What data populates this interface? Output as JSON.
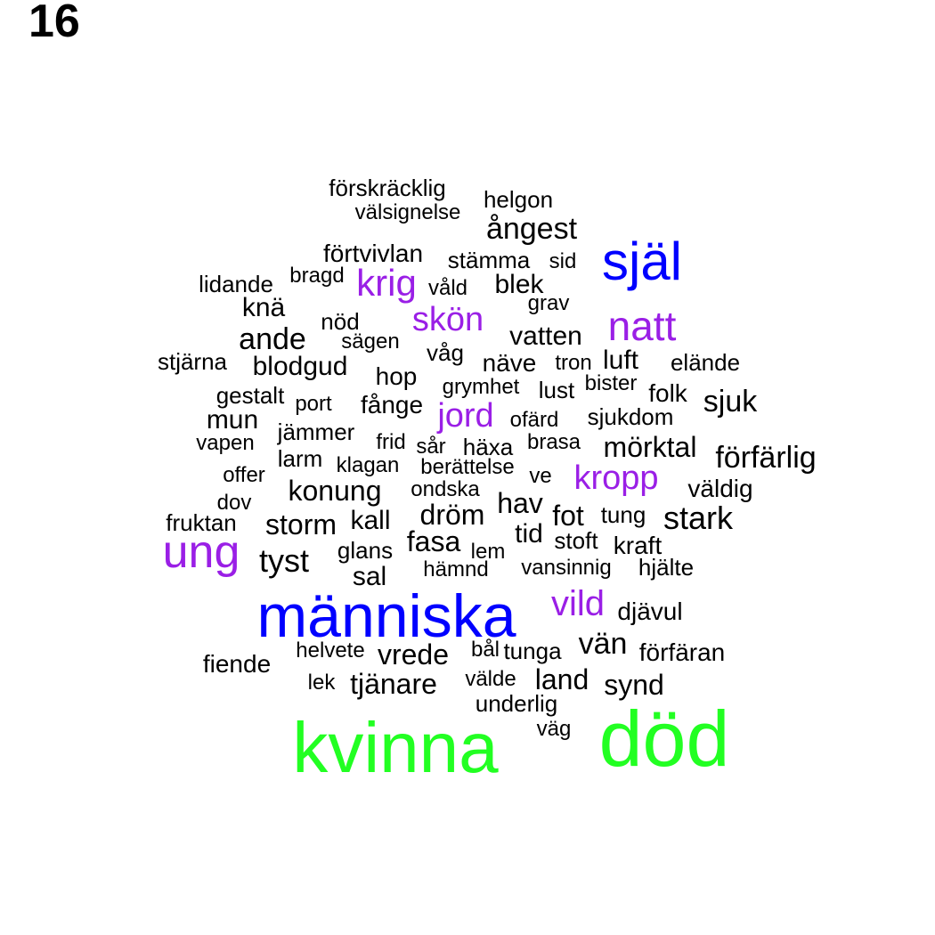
{
  "panel_label": "16",
  "colors": {
    "black": "#000000",
    "purple": "#9a1fe6",
    "blue": "#0000ff",
    "green": "#22ff22"
  },
  "words": [
    {
      "text": "kvinna",
      "color": "green"
    },
    {
      "text": "död",
      "color": "green"
    },
    {
      "text": "människa",
      "color": "blue"
    },
    {
      "text": "själ",
      "color": "blue"
    },
    {
      "text": "ung",
      "color": "purple"
    },
    {
      "text": "natt",
      "color": "purple"
    },
    {
      "text": "kropp",
      "color": "purple"
    },
    {
      "text": "vild",
      "color": "purple"
    },
    {
      "text": "jord",
      "color": "purple"
    },
    {
      "text": "krig",
      "color": "purple"
    },
    {
      "text": "skön",
      "color": "purple"
    },
    {
      "text": "förskräcklig",
      "color": "black"
    },
    {
      "text": "helgon",
      "color": "black"
    },
    {
      "text": "välsignelse",
      "color": "black"
    },
    {
      "text": "ångest",
      "color": "black"
    },
    {
      "text": "förtvivlan",
      "color": "black"
    },
    {
      "text": "stämma",
      "color": "black"
    },
    {
      "text": "sid",
      "color": "black"
    },
    {
      "text": "lidande",
      "color": "black"
    },
    {
      "text": "bragd",
      "color": "black"
    },
    {
      "text": "våld",
      "color": "black"
    },
    {
      "text": "blek",
      "color": "black"
    },
    {
      "text": "knä",
      "color": "black"
    },
    {
      "text": "grav",
      "color": "black"
    },
    {
      "text": "nöd",
      "color": "black"
    },
    {
      "text": "ande",
      "color": "black"
    },
    {
      "text": "sägen",
      "color": "black"
    },
    {
      "text": "vatten",
      "color": "black"
    },
    {
      "text": "stjärna",
      "color": "black"
    },
    {
      "text": "våg",
      "color": "black"
    },
    {
      "text": "blodgud",
      "color": "black"
    },
    {
      "text": "näve",
      "color": "black"
    },
    {
      "text": "tron",
      "color": "black"
    },
    {
      "text": "luft",
      "color": "black"
    },
    {
      "text": "elände",
      "color": "black"
    },
    {
      "text": "hop",
      "color": "black"
    },
    {
      "text": "grymhet",
      "color": "black"
    },
    {
      "text": "lust",
      "color": "black"
    },
    {
      "text": "bister",
      "color": "black"
    },
    {
      "text": "gestalt",
      "color": "black"
    },
    {
      "text": "folk",
      "color": "black"
    },
    {
      "text": "sjuk",
      "color": "black"
    },
    {
      "text": "port",
      "color": "black"
    },
    {
      "text": "fånge",
      "color": "black"
    },
    {
      "text": "mun",
      "color": "black"
    },
    {
      "text": "ofärd",
      "color": "black"
    },
    {
      "text": "sjukdom",
      "color": "black"
    },
    {
      "text": "jämmer",
      "color": "black"
    },
    {
      "text": "vapen",
      "color": "black"
    },
    {
      "text": "frid",
      "color": "black"
    },
    {
      "text": "sår",
      "color": "black"
    },
    {
      "text": "häxa",
      "color": "black"
    },
    {
      "text": "brasa",
      "color": "black"
    },
    {
      "text": "mörktal",
      "color": "black"
    },
    {
      "text": "larm",
      "color": "black"
    },
    {
      "text": "förfärlig",
      "color": "black"
    },
    {
      "text": "klagan",
      "color": "black"
    },
    {
      "text": "berättelse",
      "color": "black"
    },
    {
      "text": "offer",
      "color": "black"
    },
    {
      "text": "ve",
      "color": "black"
    },
    {
      "text": "konung",
      "color": "black"
    },
    {
      "text": "ondska",
      "color": "black"
    },
    {
      "text": "väldig",
      "color": "black"
    },
    {
      "text": "dov",
      "color": "black"
    },
    {
      "text": "hav",
      "color": "black"
    },
    {
      "text": "dröm",
      "color": "black"
    },
    {
      "text": "fot",
      "color": "black"
    },
    {
      "text": "tung",
      "color": "black"
    },
    {
      "text": "stark",
      "color": "black"
    },
    {
      "text": "fruktan",
      "color": "black"
    },
    {
      "text": "storm",
      "color": "black"
    },
    {
      "text": "kall",
      "color": "black"
    },
    {
      "text": "tid",
      "color": "black"
    },
    {
      "text": "stoft",
      "color": "black"
    },
    {
      "text": "fasa",
      "color": "black"
    },
    {
      "text": "kraft",
      "color": "black"
    },
    {
      "text": "glans",
      "color": "black"
    },
    {
      "text": "lem",
      "color": "black"
    },
    {
      "text": "tyst",
      "color": "black"
    },
    {
      "text": "vansinnig",
      "color": "black"
    },
    {
      "text": "hjälte",
      "color": "black"
    },
    {
      "text": "hämnd",
      "color": "black"
    },
    {
      "text": "sal",
      "color": "black"
    },
    {
      "text": "djävul",
      "color": "black"
    },
    {
      "text": "vän",
      "color": "black"
    },
    {
      "text": "helvete",
      "color": "black"
    },
    {
      "text": "bål",
      "color": "black"
    },
    {
      "text": "tunga",
      "color": "black"
    },
    {
      "text": "vrede",
      "color": "black"
    },
    {
      "text": "förfäran",
      "color": "black"
    },
    {
      "text": "fiende",
      "color": "black"
    },
    {
      "text": "land",
      "color": "black"
    },
    {
      "text": "lek",
      "color": "black"
    },
    {
      "text": "tjänare",
      "color": "black"
    },
    {
      "text": "välde",
      "color": "black"
    },
    {
      "text": "synd",
      "color": "black"
    },
    {
      "text": "underlig",
      "color": "black"
    },
    {
      "text": "väg",
      "color": "black"
    }
  ]
}
